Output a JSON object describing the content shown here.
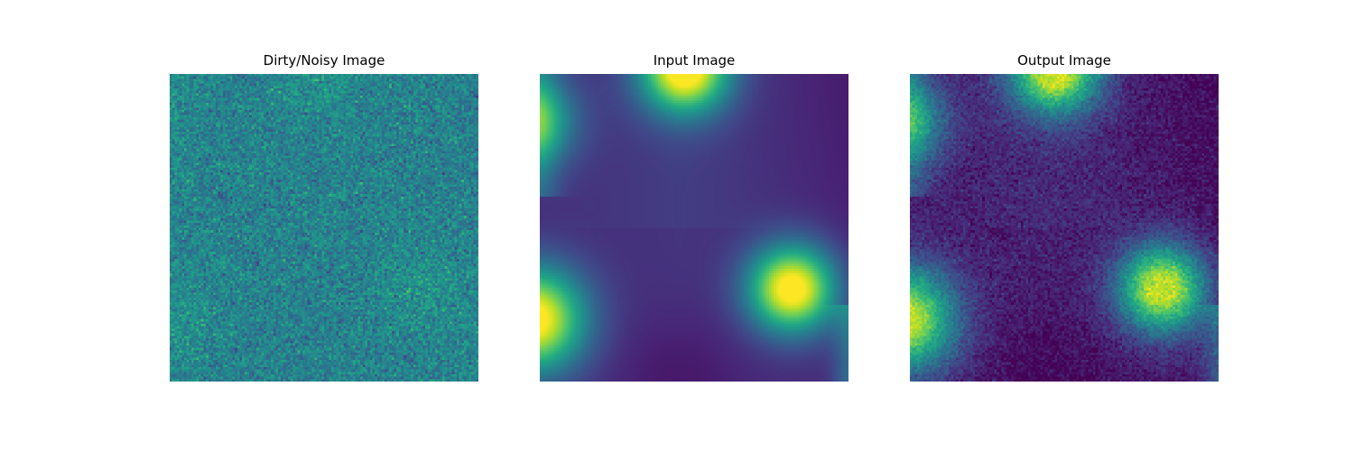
{
  "figure": {
    "colormap": "viridis",
    "panels": [
      {
        "title": "Dirty/Noisy Image"
      },
      {
        "title": "Input Image"
      },
      {
        "title": "Output Image"
      }
    ]
  }
}
